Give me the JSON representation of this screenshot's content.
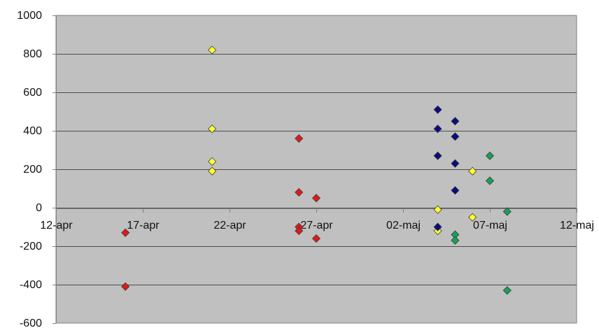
{
  "chart_data": {
    "type": "scatter",
    "title": "",
    "xlabel": "",
    "ylabel": "",
    "x_axis": {
      "type": "date",
      "min": "2008-04-12",
      "max": "2008-05-12",
      "ticks": [
        {
          "date": "2008-04-12",
          "label": "12-apr"
        },
        {
          "date": "2008-04-17",
          "label": "17-apr"
        },
        {
          "date": "2008-04-22",
          "label": "22-apr"
        },
        {
          "date": "2008-04-27",
          "label": "27-apr"
        },
        {
          "date": "2008-05-02",
          "label": "02-maj"
        },
        {
          "date": "2008-05-07",
          "label": "07-maj"
        },
        {
          "date": "2008-05-12",
          "label": "12-maj"
        }
      ]
    },
    "y_axis": {
      "min": -600,
      "max": 1000,
      "ticks": [
        {
          "value": 1000,
          "label": "1000"
        },
        {
          "value": 800,
          "label": "800"
        },
        {
          "value": 600,
          "label": "600"
        },
        {
          "value": 400,
          "label": "400"
        },
        {
          "value": 200,
          "label": "200"
        },
        {
          "value": 0,
          "label": "0"
        },
        {
          "value": -200,
          "label": "-200"
        },
        {
          "value": -400,
          "label": "-400"
        },
        {
          "value": -600,
          "label": "-600"
        }
      ]
    },
    "grid": "horizontal",
    "plot_background": "#c0c0c0",
    "marker": "diamond",
    "series": [
      {
        "color": "#e0191b",
        "points": [
          {
            "x": "2008-04-16",
            "y": -130
          },
          {
            "x": "2008-04-16",
            "y": -410
          },
          {
            "x": "2008-04-26",
            "y": 360
          },
          {
            "x": "2008-04-26",
            "y": 80
          },
          {
            "x": "2008-04-26",
            "y": -100
          },
          {
            "x": "2008-04-26",
            "y": -120
          },
          {
            "x": "2008-04-27",
            "y": 50
          },
          {
            "x": "2008-04-27",
            "y": -160
          }
        ]
      },
      {
        "color": "#ffff33",
        "points": [
          {
            "x": "2008-04-21",
            "y": 820
          },
          {
            "x": "2008-04-21",
            "y": 410
          },
          {
            "x": "2008-04-21",
            "y": 240
          },
          {
            "x": "2008-04-21",
            "y": 190
          },
          {
            "x": "2008-05-04",
            "y": -10
          },
          {
            "x": "2008-05-04",
            "y": -120
          },
          {
            "x": "2008-05-06",
            "y": 190
          },
          {
            "x": "2008-05-06",
            "y": -50
          }
        ]
      },
      {
        "color": "#0b0b80",
        "points": [
          {
            "x": "2008-05-04",
            "y": 510
          },
          {
            "x": "2008-05-04",
            "y": 410
          },
          {
            "x": "2008-05-04",
            "y": 270
          },
          {
            "x": "2008-05-04",
            "y": -100
          },
          {
            "x": "2008-05-05",
            "y": 450
          },
          {
            "x": "2008-05-05",
            "y": 370
          },
          {
            "x": "2008-05-05",
            "y": 230
          },
          {
            "x": "2008-05-05",
            "y": 90
          }
        ]
      },
      {
        "color": "#1aa055",
        "points": [
          {
            "x": "2008-05-05",
            "y": -140
          },
          {
            "x": "2008-05-05",
            "y": -170
          },
          {
            "x": "2008-05-07",
            "y": 270
          },
          {
            "x": "2008-05-07",
            "y": 140
          },
          {
            "x": "2008-05-08",
            "y": -20
          },
          {
            "x": "2008-05-08",
            "y": -430
          }
        ]
      }
    ]
  }
}
